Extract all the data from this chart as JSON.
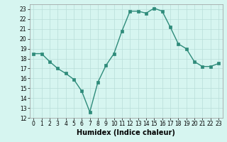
{
  "x": [
    0,
    1,
    2,
    3,
    4,
    5,
    6,
    7,
    8,
    9,
    10,
    11,
    12,
    13,
    14,
    15,
    16,
    17,
    18,
    19,
    20,
    21,
    22,
    23
  ],
  "y": [
    18.5,
    18.5,
    17.7,
    17.0,
    16.5,
    15.9,
    14.7,
    12.6,
    15.6,
    17.3,
    18.5,
    20.8,
    22.8,
    22.8,
    22.6,
    23.1,
    22.8,
    21.2,
    19.5,
    19.0,
    17.7,
    17.2,
    17.2,
    17.5
  ],
  "line_color": "#2e8b7a",
  "marker": "s",
  "marker_size": 2.5,
  "bg_color": "#d6f5f0",
  "grid_color": "#b8ddd8",
  "xlabel": "Humidex (Indice chaleur)",
  "xlim": [
    -0.5,
    23.5
  ],
  "ylim": [
    12,
    23.5
  ],
  "yticks": [
    12,
    13,
    14,
    15,
    16,
    17,
    18,
    19,
    20,
    21,
    22,
    23
  ],
  "xticks": [
    0,
    1,
    2,
    3,
    4,
    5,
    6,
    7,
    8,
    9,
    10,
    11,
    12,
    13,
    14,
    15,
    16,
    17,
    18,
    19,
    20,
    21,
    22,
    23
  ],
  "tick_fontsize": 5.5,
  "xlabel_fontsize": 7,
  "line_width": 1.0
}
